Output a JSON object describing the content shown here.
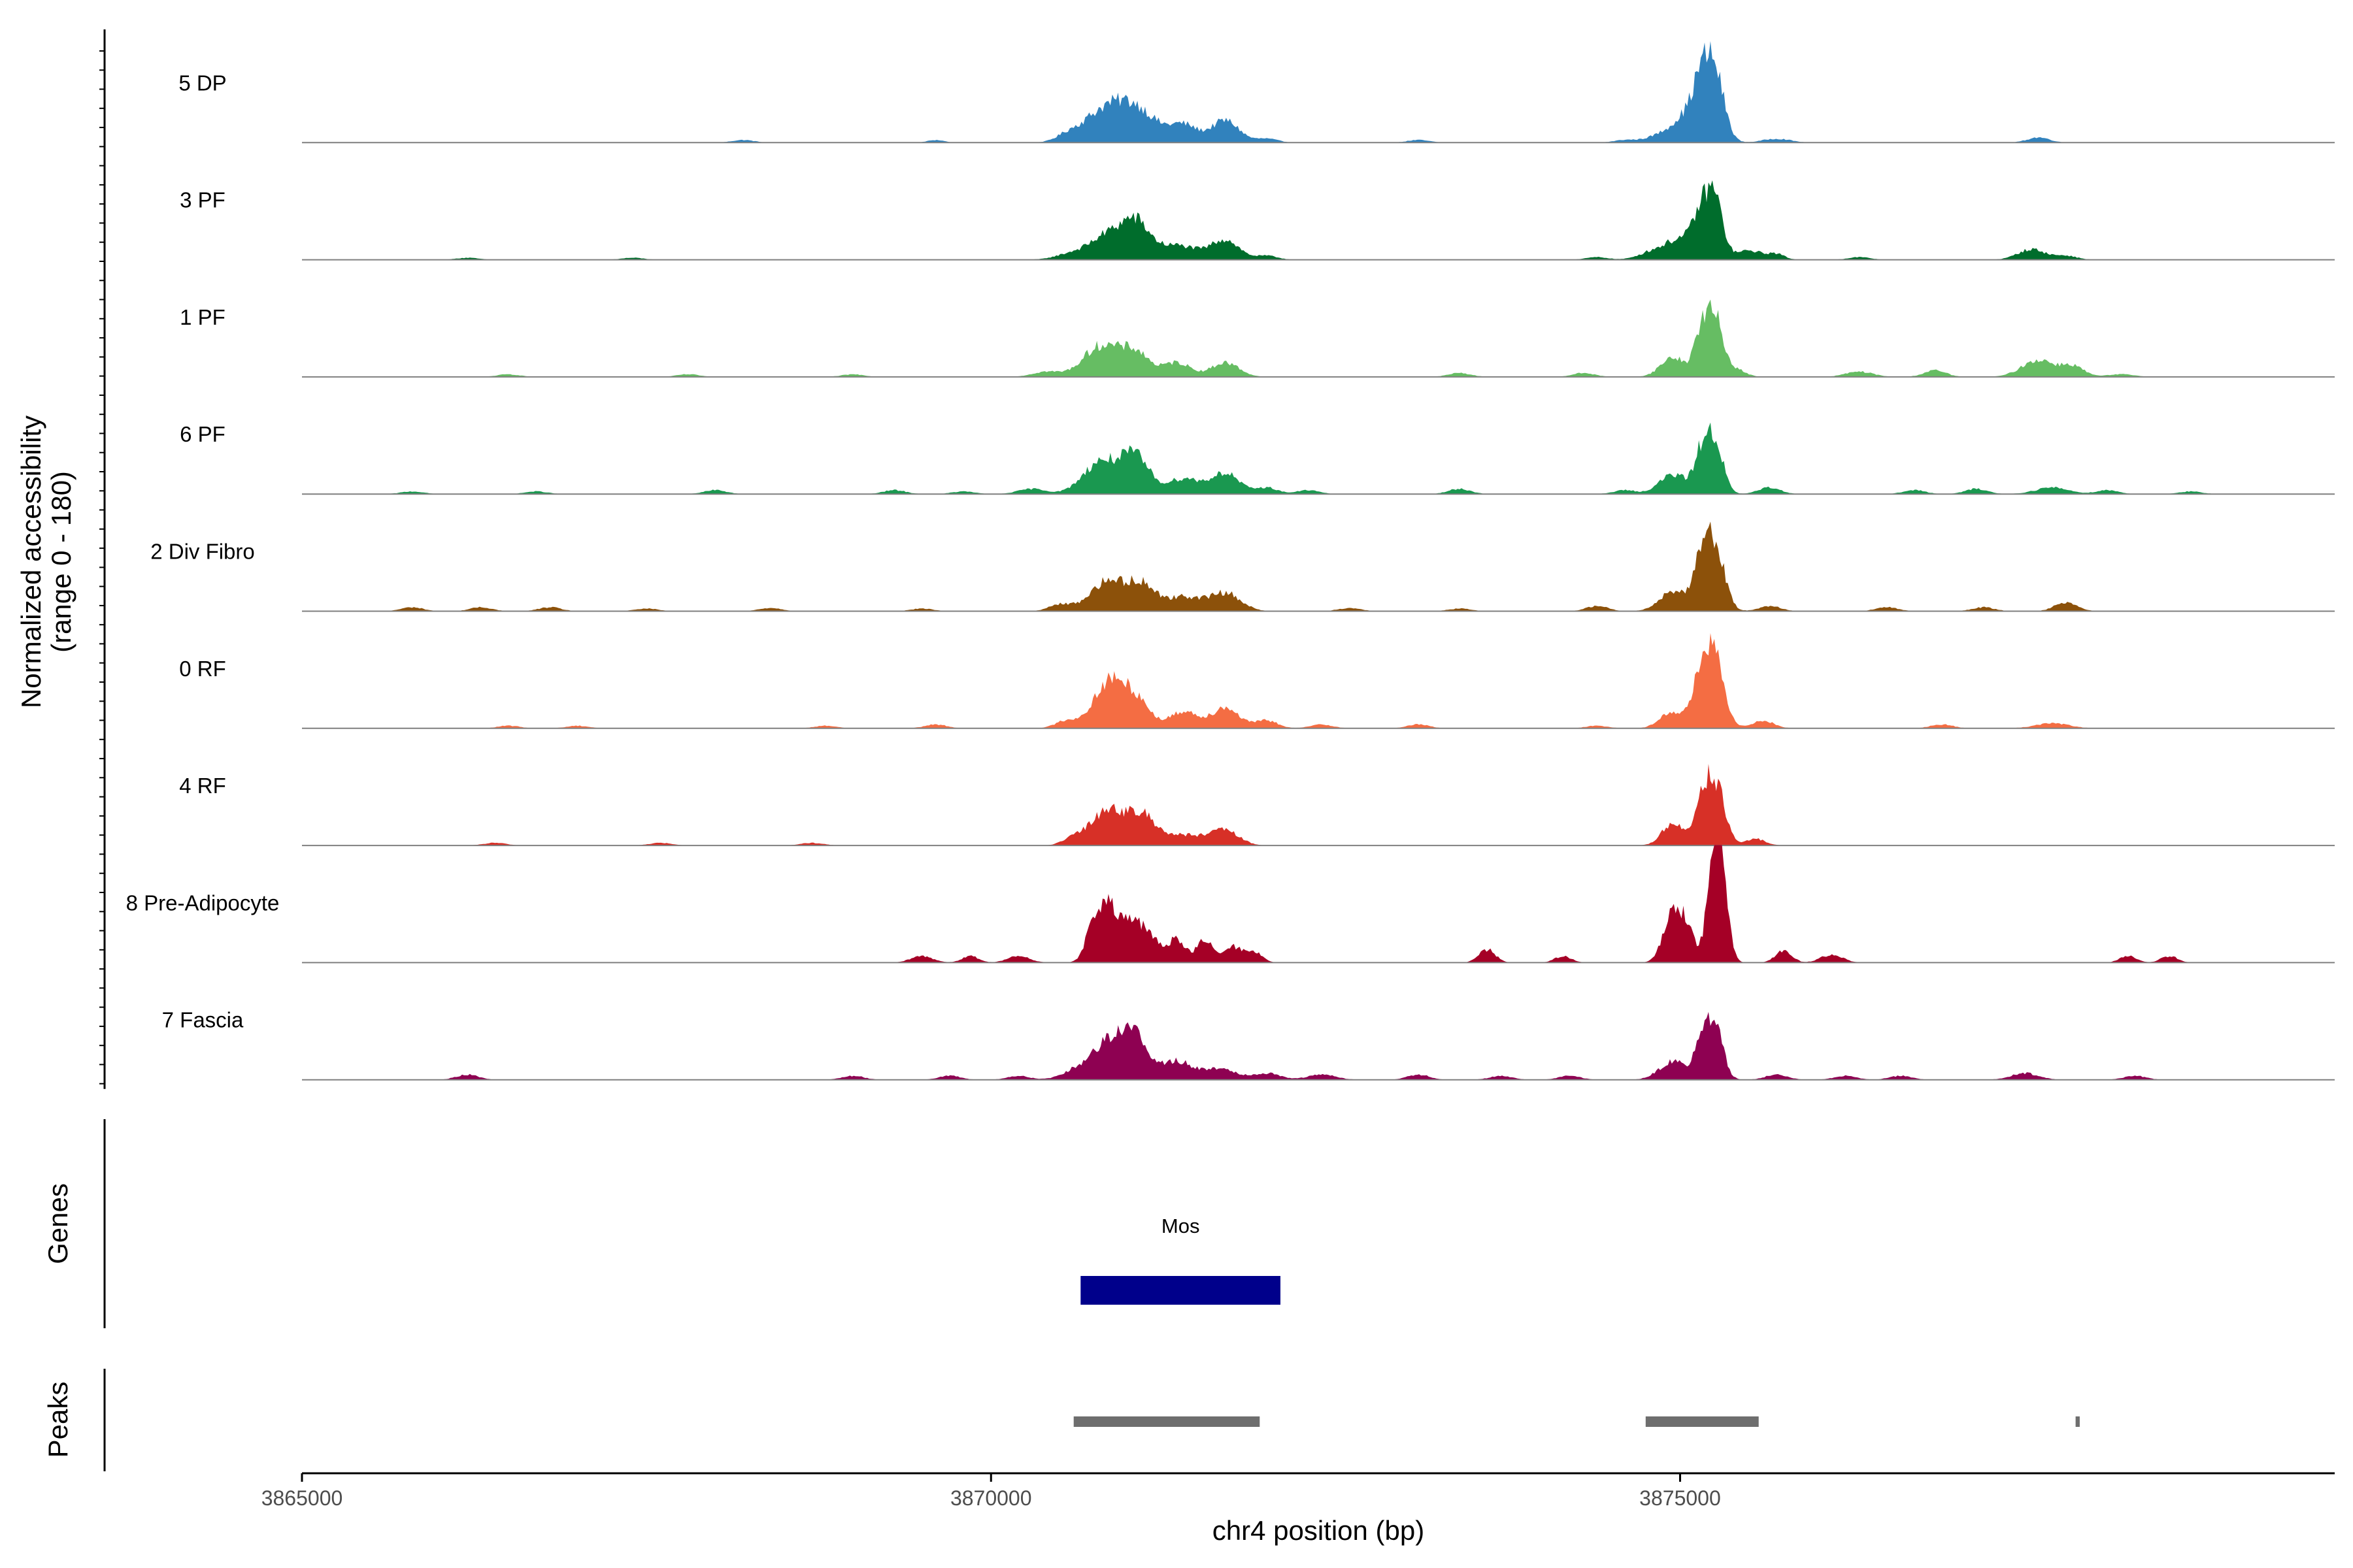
{
  "chart_data": {
    "type": "area",
    "title": "",
    "ylabel_line1": "Normalized accessibility",
    "ylabel_line2": "(range 0 - 180)",
    "ylim": [
      0,
      180
    ],
    "xlabel": "chr4 position (bp)",
    "xlim": [
      3865000,
      3879750
    ],
    "x_ticks": [
      3865000,
      3870000,
      3875000
    ],
    "x_tick_labels": [
      "3865000",
      "3870000",
      "3875000"
    ],
    "series": [
      {
        "name": "5 DP",
        "color": "#3182bd",
        "peaks": [
          [
            3868200,
            80,
            4
          ],
          [
            3869600,
            60,
            4
          ],
          [
            3870550,
            80,
            8
          ],
          [
            3870800,
            150,
            42
          ],
          [
            3871050,
            150,
            50
          ],
          [
            3871400,
            100,
            26
          ],
          [
            3871700,
            100,
            34
          ],
          [
            3872000,
            80,
            6
          ],
          [
            3873100,
            80,
            4
          ],
          [
            3874600,
            80,
            4
          ],
          [
            3874850,
            100,
            10
          ],
          [
            3875050,
            100,
            40
          ],
          [
            3875250,
            70,
            104
          ],
          [
            3875150,
            60,
            60
          ],
          [
            3875700,
            100,
            6
          ],
          [
            3877600,
            80,
            8
          ]
        ]
      },
      {
        "name": "3 PF",
        "color": "#006d2c",
        "peaks": [
          [
            3866200,
            80,
            3
          ],
          [
            3867400,
            80,
            3
          ],
          [
            3870600,
            120,
            10
          ],
          [
            3870850,
            120,
            36
          ],
          [
            3871050,
            100,
            52
          ],
          [
            3871350,
            150,
            22
          ],
          [
            3871700,
            100,
            30
          ],
          [
            3872000,
            80,
            6
          ],
          [
            3874400,
            80,
            4
          ],
          [
            3874800,
            100,
            12
          ],
          [
            3875000,
            100,
            30
          ],
          [
            3875250,
            60,
            90
          ],
          [
            3875150,
            60,
            58
          ],
          [
            3875500,
            100,
            14
          ],
          [
            3875700,
            60,
            8
          ],
          [
            3876300,
            80,
            4
          ],
          [
            3877550,
            100,
            16
          ],
          [
            3877800,
            80,
            6
          ]
        ]
      },
      {
        "name": "1 PF",
        "color": "#66bd63",
        "peaks": [
          [
            3866500,
            80,
            4
          ],
          [
            3867800,
            80,
            4
          ],
          [
            3869000,
            80,
            4
          ],
          [
            3870400,
            100,
            8
          ],
          [
            3870800,
            130,
            48
          ],
          [
            3871050,
            100,
            36
          ],
          [
            3871350,
            100,
            22
          ],
          [
            3871700,
            100,
            22
          ],
          [
            3873400,
            80,
            6
          ],
          [
            3874300,
            80,
            6
          ],
          [
            3874950,
            90,
            30
          ],
          [
            3875250,
            60,
            90
          ],
          [
            3875150,
            50,
            60
          ],
          [
            3875400,
            70,
            12
          ],
          [
            3876300,
            100,
            8
          ],
          [
            3876850,
            80,
            10
          ],
          [
            3877600,
            120,
            26
          ],
          [
            3877850,
            80,
            16
          ],
          [
            3878200,
            100,
            4
          ]
        ]
      },
      {
        "name": "6 PF",
        "color": "#1a9850",
        "peaks": [
          [
            3865800,
            80,
            4
          ],
          [
            3866700,
            80,
            4
          ],
          [
            3868000,
            80,
            6
          ],
          [
            3869300,
            80,
            6
          ],
          [
            3869800,
            80,
            4
          ],
          [
            3870300,
            100,
            8
          ],
          [
            3870800,
            130,
            50
          ],
          [
            3871050,
            100,
            54
          ],
          [
            3871400,
            120,
            24
          ],
          [
            3871700,
            100,
            32
          ],
          [
            3872000,
            80,
            10
          ],
          [
            3872300,
            80,
            6
          ],
          [
            3873400,
            80,
            8
          ],
          [
            3874600,
            80,
            6
          ],
          [
            3874950,
            100,
            30
          ],
          [
            3875250,
            60,
            84
          ],
          [
            3875150,
            50,
            54
          ],
          [
            3875650,
            80,
            10
          ],
          [
            3876700,
            80,
            6
          ],
          [
            3877150,
            80,
            8
          ],
          [
            3877700,
            120,
            10
          ],
          [
            3878100,
            80,
            6
          ],
          [
            3878700,
            80,
            4
          ]
        ]
      },
      {
        "name": "2 Div Fibro",
        "color": "#8c510a",
        "peaks": [
          [
            3865800,
            80,
            6
          ],
          [
            3866300,
            80,
            6
          ],
          [
            3866800,
            80,
            6
          ],
          [
            3867500,
            80,
            4
          ],
          [
            3868400,
            80,
            5
          ],
          [
            3869500,
            80,
            4
          ],
          [
            3870500,
            80,
            10
          ],
          [
            3870850,
            130,
            46
          ],
          [
            3871100,
            100,
            38
          ],
          [
            3871400,
            120,
            22
          ],
          [
            3871700,
            110,
            28
          ],
          [
            3872600,
            80,
            5
          ],
          [
            3873400,
            80,
            4
          ],
          [
            3874400,
            80,
            8
          ],
          [
            3874950,
            100,
            30
          ],
          [
            3875250,
            70,
            100
          ],
          [
            3875150,
            60,
            62
          ],
          [
            3875650,
            80,
            8
          ],
          [
            3876500,
            80,
            6
          ],
          [
            3877200,
            80,
            6
          ],
          [
            3877800,
            80,
            14
          ]
        ]
      },
      {
        "name": "0 RF",
        "color": "#f46d43",
        "peaks": [
          [
            3866500,
            80,
            4
          ],
          [
            3867000,
            80,
            4
          ],
          [
            3868800,
            80,
            4
          ],
          [
            3869600,
            80,
            6
          ],
          [
            3870550,
            80,
            12
          ],
          [
            3870850,
            110,
            68
          ],
          [
            3871050,
            100,
            44
          ],
          [
            3871400,
            100,
            26
          ],
          [
            3871700,
            100,
            32
          ],
          [
            3872000,
            80,
            12
          ],
          [
            3872400,
            80,
            6
          ],
          [
            3873100,
            80,
            6
          ],
          [
            3874400,
            80,
            4
          ],
          [
            3874950,
            90,
            26
          ],
          [
            3875250,
            70,
            102
          ],
          [
            3875150,
            60,
            66
          ],
          [
            3875600,
            80,
            12
          ],
          [
            3876900,
            80,
            6
          ],
          [
            3877700,
            120,
            8
          ]
        ]
      },
      {
        "name": "4 RF",
        "color": "#d73027",
        "peaks": [
          [
            3866400,
            80,
            4
          ],
          [
            3867600,
            80,
            4
          ],
          [
            3868700,
            80,
            4
          ],
          [
            3870600,
            80,
            10
          ],
          [
            3870850,
            120,
            56
          ],
          [
            3871100,
            100,
            42
          ],
          [
            3871400,
            150,
            16
          ],
          [
            3871700,
            100,
            22
          ],
          [
            3874950,
            80,
            34
          ],
          [
            3875250,
            70,
            98
          ],
          [
            3875150,
            50,
            50
          ],
          [
            3875550,
            70,
            10
          ]
        ]
      },
      {
        "name": "8 Pre-Adipocyte",
        "color": "#a50026",
        "peaks": [
          [
            3869500,
            80,
            10
          ],
          [
            3869850,
            60,
            10
          ],
          [
            3870200,
            80,
            10
          ],
          [
            3870750,
            60,
            58
          ],
          [
            3870850,
            60,
            68
          ],
          [
            3871000,
            80,
            58
          ],
          [
            3871150,
            80,
            36
          ],
          [
            3871350,
            60,
            36
          ],
          [
            3871550,
            60,
            34
          ],
          [
            3871750,
            60,
            24
          ],
          [
            3871900,
            60,
            18
          ],
          [
            3873600,
            60,
            20
          ],
          [
            3874150,
            60,
            10
          ],
          [
            3874950,
            70,
            72
          ],
          [
            3875050,
            60,
            40
          ],
          [
            3875250,
            50,
            160
          ],
          [
            3875300,
            50,
            110
          ],
          [
            3875750,
            60,
            18
          ],
          [
            3876100,
            80,
            12
          ],
          [
            3878250,
            60,
            10
          ],
          [
            3878550,
            60,
            10
          ]
        ]
      },
      {
        "name": "7 Fascia",
        "color": "#8e0152",
        "peaks": [
          [
            3866200,
            80,
            8
          ],
          [
            3869000,
            80,
            6
          ],
          [
            3869700,
            80,
            6
          ],
          [
            3870200,
            80,
            6
          ],
          [
            3870600,
            100,
            12
          ],
          [
            3870850,
            120,
            58
          ],
          [
            3871050,
            100,
            60
          ],
          [
            3871350,
            100,
            28
          ],
          [
            3871650,
            120,
            18
          ],
          [
            3872000,
            100,
            10
          ],
          [
            3872400,
            100,
            8
          ],
          [
            3873100,
            80,
            8
          ],
          [
            3873700,
            80,
            6
          ],
          [
            3874200,
            80,
            6
          ],
          [
            3874950,
            100,
            28
          ],
          [
            3875250,
            60,
            84
          ],
          [
            3875150,
            50,
            50
          ],
          [
            3875700,
            80,
            8
          ],
          [
            3876200,
            80,
            6
          ],
          [
            3876600,
            80,
            6
          ],
          [
            3877500,
            100,
            10
          ],
          [
            3878300,
            80,
            6
          ]
        ]
      }
    ],
    "genes_label": "Genes",
    "genes": [
      {
        "name": "Mos",
        "start": 3870650,
        "end": 3872100,
        "color": "#00008b"
      }
    ],
    "peaks_label": "Peaks",
    "peak_regions": [
      {
        "start": 3870600,
        "end": 3871950
      },
      {
        "start": 3874750,
        "end": 3875570
      },
      {
        "start": 3877870,
        "end": 3877900
      }
    ],
    "colors": {
      "baseline": "#7f7f7f",
      "axis": "#000000",
      "peak_region": "#6e6e6e"
    }
  }
}
